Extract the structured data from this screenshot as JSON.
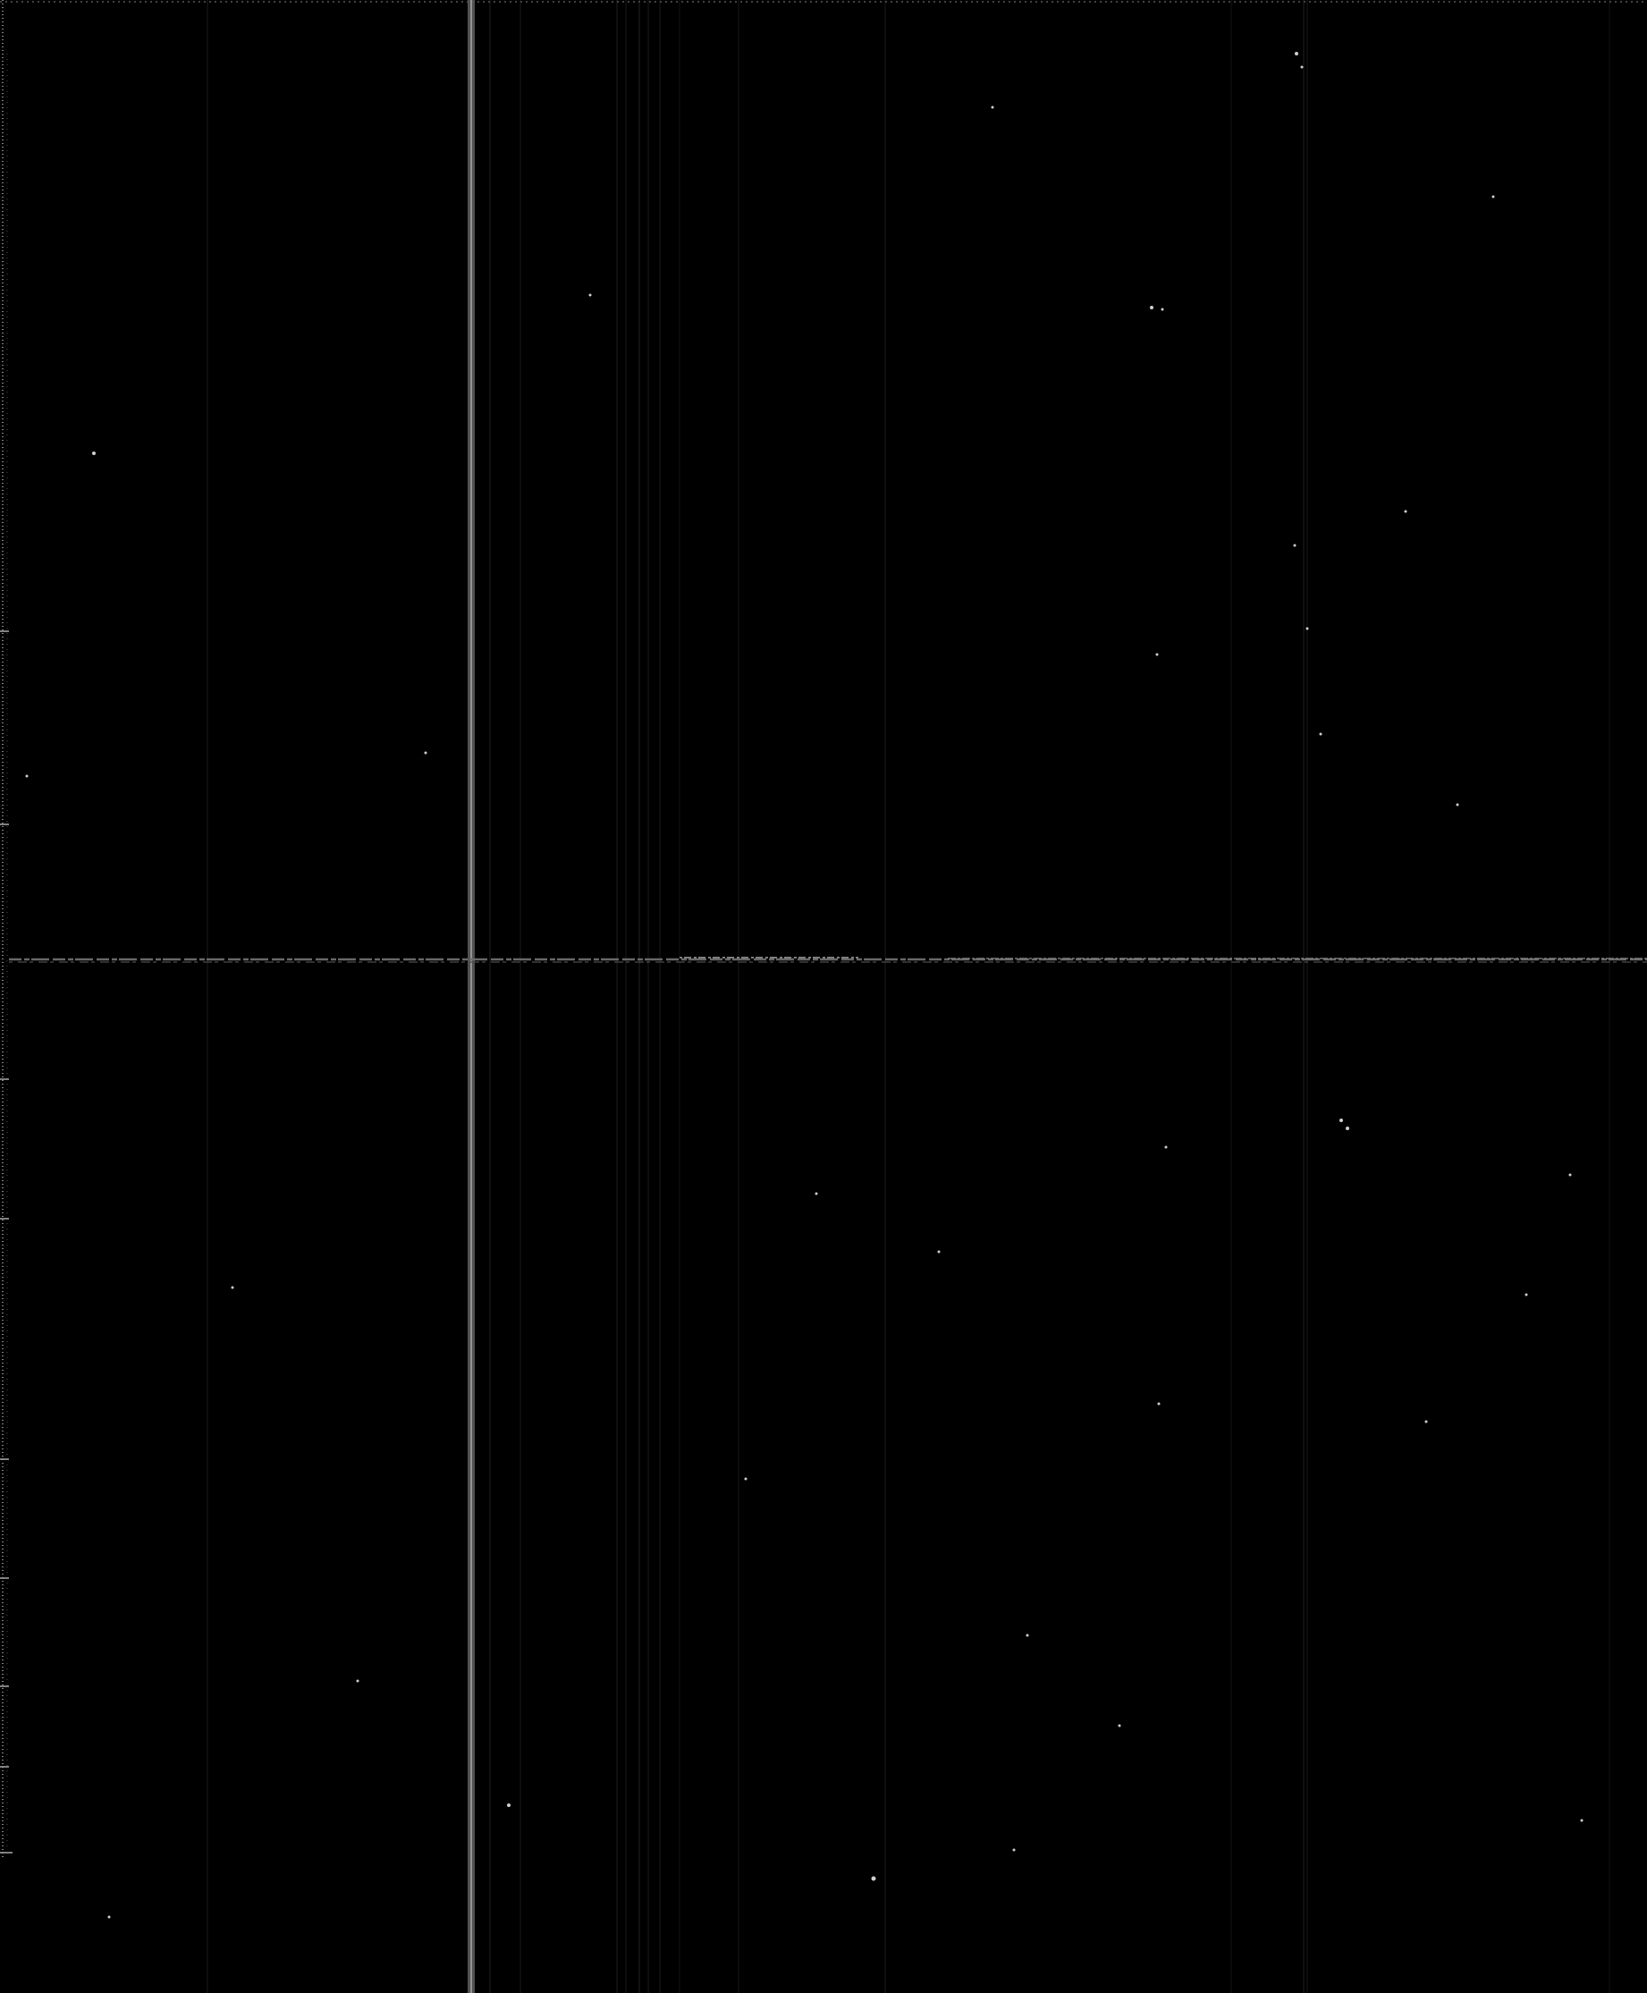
{
  "image": {
    "background_color": "#000000",
    "line_color": "#8a8a8a",
    "speck_color": "#cfcfcf",
    "edge_color": "#9a9a9a"
  }
}
